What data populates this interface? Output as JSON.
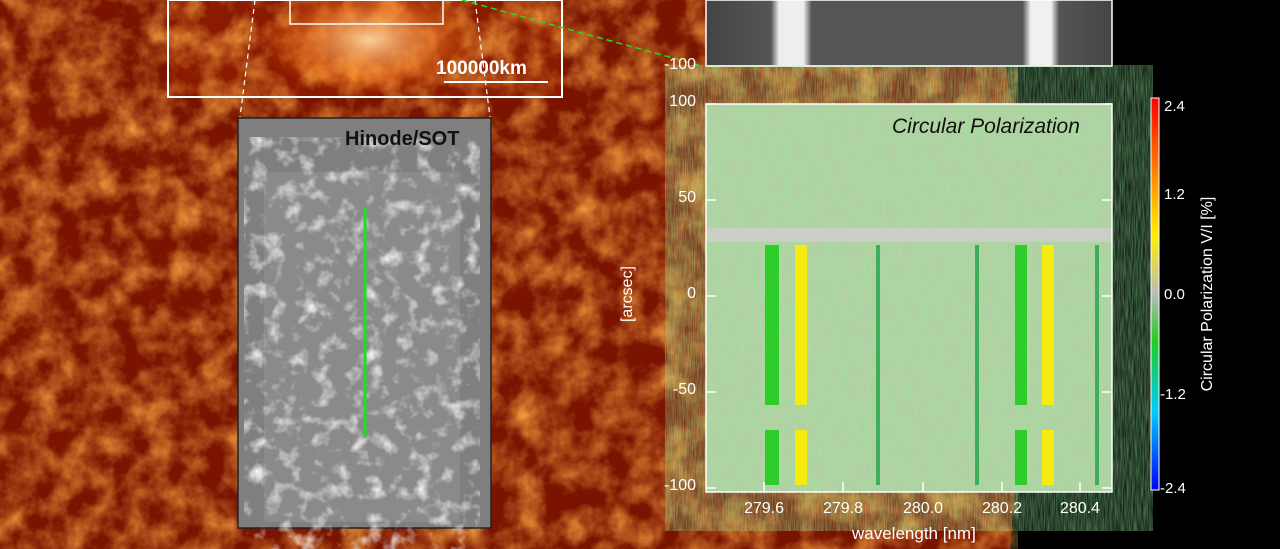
{
  "inset_top": {
    "scale_label": "100000km"
  },
  "hinode": {
    "title": "Hinode/SOT"
  },
  "spectrum_top": {
    "y_ticks": [
      "-100"
    ]
  },
  "polarization_plot": {
    "title": "Circular Polarization",
    "ylabel": "[arcsec]",
    "xlabel": "wavelength [nm]",
    "y_ticks": [
      "100",
      "50",
      "0",
      "-50",
      "-100"
    ],
    "x_ticks": [
      "279.6",
      "279.8",
      "280.0",
      "280.2",
      "280.4"
    ]
  },
  "colorbar": {
    "label": "Circular Polarization V/I [%]",
    "ticks": [
      "2.4",
      "1.2",
      "0.0",
      "-1.2",
      "-2.4"
    ],
    "colors": [
      "#ff0000",
      "#ffee00",
      "#bbbbbb",
      "#22cc22",
      "#00ccff",
      "#0000ff"
    ]
  },
  "colors": {
    "sun": "#8b1a00",
    "green_line": "#22dd22",
    "axis": "#ffffff"
  }
}
